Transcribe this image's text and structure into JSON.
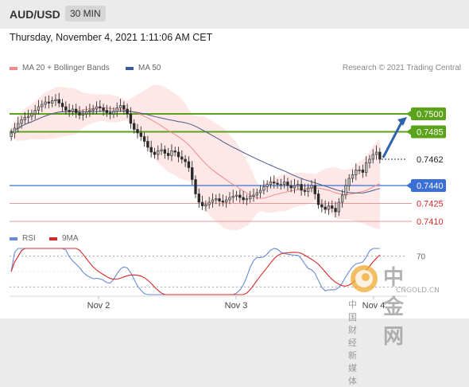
{
  "header": {
    "symbol": "AUD/USD",
    "timeframe": "30 MIN"
  },
  "timestamp": "Thursday, November 4, 2021 1:11:06 AM CET",
  "legend": {
    "bb_label": "MA 20 + Bollinger Bands",
    "ma50_label": "MA 50",
    "credit": "Research © 2021 Trading Central"
  },
  "rsi_legend": {
    "rsi_label": "RSI",
    "ma_label": "9MA"
  },
  "colors": {
    "up": "#3a3a3a",
    "green_level": "#5aa31a",
    "blue_level": "#3b6fd6",
    "red_level": "#e89a9a",
    "bb_fill": "#fde4e4",
    "ma50": "#4a5a8a",
    "rsi": "#6a8ad6",
    "rsi_ma": "#d62a2a",
    "arrow": "#2f63ad"
  },
  "watermark": {
    "brand": "中金网",
    "domain": "CNGOLD.CN",
    "slogan": "中 国 财 经 新 媒 体",
    "logo_icon": "cngold-logo-icon"
  },
  "chart_data": {
    "type": "candlestick",
    "x_ticks": [
      "Nov 2",
      "Nov 3",
      "Nov 4"
    ],
    "ylim": [
      0.7402,
      0.752
    ],
    "levels": [
      {
        "value": 0.75,
        "label": "0.7500",
        "kind": "resistance"
      },
      {
        "value": 0.7485,
        "label": "0.7485",
        "kind": "resistance"
      },
      {
        "value": 0.7462,
        "label": "0.7462",
        "kind": "last"
      },
      {
        "value": 0.744,
        "label": "0.7440",
        "kind": "pivot"
      },
      {
        "value": 0.7425,
        "label": "0.7425",
        "kind": "support"
      },
      {
        "value": 0.741,
        "label": "0.7410",
        "kind": "support"
      }
    ],
    "closes": [
      0.7484,
      0.7488,
      0.7492,
      0.7495,
      0.7497,
      0.7498,
      0.75,
      0.7503,
      0.7506,
      0.7508,
      0.751,
      0.7509,
      0.7511,
      0.7512,
      0.7509,
      0.7506,
      0.7503,
      0.7502,
      0.7504,
      0.7501,
      0.7499,
      0.75,
      0.7502,
      0.7503,
      0.7504,
      0.7506,
      0.7505,
      0.7503,
      0.7501,
      0.75,
      0.7502,
      0.7505,
      0.7507,
      0.7504,
      0.75,
      0.7492,
      0.7487,
      0.7484,
      0.7481,
      0.7477,
      0.7472,
      0.7468,
      0.7466,
      0.7469,
      0.747,
      0.7467,
      0.7465,
      0.7469,
      0.7468,
      0.7464,
      0.7462,
      0.746,
      0.7455,
      0.7445,
      0.7433,
      0.7426,
      0.7423,
      0.7424,
      0.7426,
      0.7428,
      0.7429,
      0.7427,
      0.7426,
      0.7428,
      0.743,
      0.7431,
      0.7432,
      0.743,
      0.7428,
      0.7429,
      0.7431,
      0.7432,
      0.7434,
      0.7436,
      0.7439,
      0.7441,
      0.7443,
      0.7442,
      0.7441,
      0.7441,
      0.7443,
      0.744,
      0.7438,
      0.744,
      0.7441,
      0.7436,
      0.7435,
      0.7438,
      0.744,
      0.7433,
      0.7424,
      0.7422,
      0.742,
      0.7423,
      0.7421,
      0.7418,
      0.7426,
      0.7432,
      0.744,
      0.7446,
      0.7449,
      0.7453,
      0.7453,
      0.7451,
      0.7459,
      0.7462,
      0.7466,
      0.7468,
      0.7462
    ],
    "rsi": {
      "ylim": [
        20,
        80
      ],
      "levels": [
        70,
        30
      ],
      "level_label": "70"
    },
    "annotation": {
      "type": "arrow",
      "from": 0.7462,
      "to": 0.75
    }
  }
}
